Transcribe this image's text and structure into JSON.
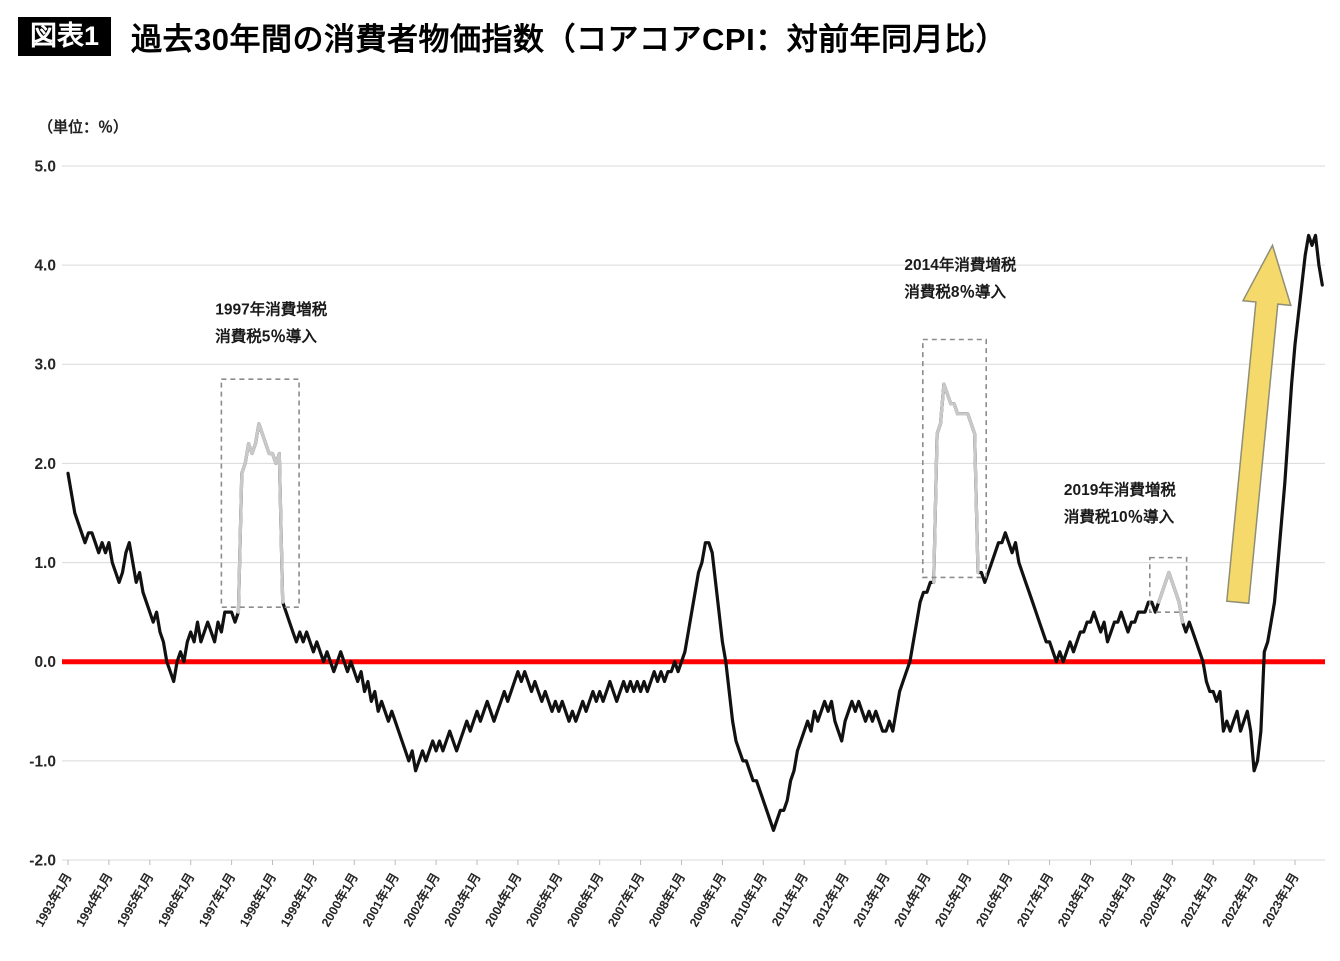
{
  "header": {
    "tag": "図表1",
    "title": "過去30年間の消費者物価指数（コアコアCPI：対前年同月比）"
  },
  "chart_data": {
    "type": "line",
    "title": "過去30年間の消費者物価指数（コアコアCPI：対前年同月比）",
    "unit_label": "（単位：％）",
    "ylim": [
      -2.0,
      5.0
    ],
    "y_ticks": [
      5.0,
      4.0,
      3.0,
      2.0,
      1.0,
      0.0,
      -1.0,
      -2.0
    ],
    "x_tick_labels": [
      "1993年1月",
      "1994年1月",
      "1995年1月",
      "1996年1月",
      "1997年1月",
      "1998年1月",
      "1999年1月",
      "2000年1月",
      "2001年1月",
      "2002年1月",
      "2003年1月",
      "2004年1月",
      "2005年1月",
      "2006年1月",
      "2007年1月",
      "2008年1月",
      "2009年1月",
      "2010年1月",
      "2011年1月",
      "2012年1月",
      "2013年1月",
      "2014年1月",
      "2015年1月",
      "2016年1月",
      "2017年1月",
      "2018年1月",
      "2019年1月",
      "2020年1月",
      "2021年1月",
      "2022年1月",
      "2023年1月"
    ],
    "start_year": 1993,
    "grid": true,
    "legend": "none",
    "line_color": "#111111",
    "highlight_color": "#c9c9c9",
    "zero_line_color": "#ff0000",
    "series": [
      {
        "name": "コアコアCPI 対前年同月比(%)",
        "values_by_year": [
          [
            1.9,
            1.7,
            1.5,
            1.4,
            1.3,
            1.2,
            1.3,
            1.3,
            1.2,
            1.1,
            1.2,
            1.1
          ],
          [
            1.2,
            1.0,
            0.9,
            0.8,
            0.9,
            1.1,
            1.2,
            1.0,
            0.8,
            0.9,
            0.7,
            0.6
          ],
          [
            0.5,
            0.4,
            0.5,
            0.3,
            0.2,
            0.0,
            -0.1,
            -0.2,
            0.0,
            0.1,
            0.0,
            0.2
          ],
          [
            0.3,
            0.2,
            0.4,
            0.2,
            0.3,
            0.4,
            0.3,
            0.2,
            0.4,
            0.3,
            0.5,
            0.5
          ],
          [
            0.5,
            0.4,
            0.5,
            1.9,
            2.0,
            2.2,
            2.1,
            2.2,
            2.4,
            2.3,
            2.2,
            2.1
          ],
          [
            2.1,
            2.0,
            2.1,
            0.6,
            0.5,
            0.4,
            0.3,
            0.2,
            0.3,
            0.2,
            0.3,
            0.2
          ],
          [
            0.1,
            0.2,
            0.1,
            0.0,
            0.1,
            0.0,
            -0.1,
            0.0,
            0.1,
            0.0,
            -0.1,
            0.0
          ],
          [
            -0.1,
            -0.2,
            -0.1,
            -0.3,
            -0.2,
            -0.4,
            -0.3,
            -0.5,
            -0.4,
            -0.5,
            -0.6,
            -0.5
          ],
          [
            -0.6,
            -0.7,
            -0.8,
            -0.9,
            -1.0,
            -0.9,
            -1.1,
            -1.0,
            -0.9,
            -1.0,
            -0.9,
            -0.8
          ],
          [
            -0.9,
            -0.8,
            -0.9,
            -0.8,
            -0.7,
            -0.8,
            -0.9,
            -0.8,
            -0.7,
            -0.6,
            -0.7,
            -0.6
          ],
          [
            -0.5,
            -0.6,
            -0.5,
            -0.4,
            -0.5,
            -0.6,
            -0.5,
            -0.4,
            -0.3,
            -0.4,
            -0.3,
            -0.2
          ],
          [
            -0.1,
            -0.2,
            -0.1,
            -0.2,
            -0.3,
            -0.2,
            -0.3,
            -0.4,
            -0.3,
            -0.4,
            -0.5,
            -0.4
          ],
          [
            -0.5,
            -0.4,
            -0.5,
            -0.6,
            -0.5,
            -0.6,
            -0.5,
            -0.4,
            -0.5,
            -0.4,
            -0.3,
            -0.4
          ],
          [
            -0.3,
            -0.4,
            -0.3,
            -0.2,
            -0.3,
            -0.4,
            -0.3,
            -0.2,
            -0.3,
            -0.2,
            -0.3,
            -0.2
          ],
          [
            -0.3,
            -0.2,
            -0.3,
            -0.2,
            -0.1,
            -0.2,
            -0.1,
            -0.2,
            -0.1,
            -0.1,
            0.0,
            -0.1
          ],
          [
            0.0,
            0.1,
            0.3,
            0.5,
            0.7,
            0.9,
            1.0,
            1.2,
            1.2,
            1.1,
            0.8,
            0.5
          ],
          [
            0.2,
            0.0,
            -0.3,
            -0.6,
            -0.8,
            -0.9,
            -1.0,
            -1.0,
            -1.1,
            -1.2,
            -1.2,
            -1.3
          ],
          [
            -1.4,
            -1.5,
            -1.6,
            -1.7,
            -1.6,
            -1.5,
            -1.5,
            -1.4,
            -1.2,
            -1.1,
            -0.9,
            -0.8
          ],
          [
            -0.7,
            -0.6,
            -0.7,
            -0.5,
            -0.6,
            -0.5,
            -0.4,
            -0.5,
            -0.4,
            -0.6,
            -0.7,
            -0.8
          ],
          [
            -0.6,
            -0.5,
            -0.4,
            -0.5,
            -0.4,
            -0.5,
            -0.6,
            -0.5,
            -0.6,
            -0.5,
            -0.6,
            -0.7
          ],
          [
            -0.7,
            -0.6,
            -0.7,
            -0.5,
            -0.3,
            -0.2,
            -0.1,
            0.0,
            0.2,
            0.4,
            0.6,
            0.7
          ],
          [
            0.7,
            0.8,
            0.8,
            2.3,
            2.4,
            2.8,
            2.7,
            2.6,
            2.6,
            2.5,
            2.5,
            2.5
          ],
          [
            2.5,
            2.4,
            2.3,
            0.9,
            0.9,
            0.8,
            0.9,
            1.0,
            1.1,
            1.2,
            1.2,
            1.3
          ],
          [
            1.2,
            1.1,
            1.2,
            1.0,
            0.9,
            0.8,
            0.7,
            0.6,
            0.5,
            0.4,
            0.3,
            0.2
          ],
          [
            0.2,
            0.1,
            0.0,
            0.1,
            0.0,
            0.1,
            0.2,
            0.1,
            0.2,
            0.3,
            0.3,
            0.4
          ],
          [
            0.4,
            0.5,
            0.4,
            0.3,
            0.4,
            0.2,
            0.3,
            0.4,
            0.4,
            0.5,
            0.4,
            0.3
          ],
          [
            0.4,
            0.4,
            0.5,
            0.5,
            0.5,
            0.6,
            0.6,
            0.5,
            0.6,
            0.7,
            0.8,
            0.9
          ],
          [
            0.8,
            0.7,
            0.6,
            0.4,
            0.3,
            0.4,
            0.3,
            0.2,
            0.1,
            0.0,
            -0.2,
            -0.3
          ],
          [
            -0.3,
            -0.4,
            -0.3,
            -0.7,
            -0.6,
            -0.7,
            -0.6,
            -0.5,
            -0.7,
            -0.6,
            -0.5,
            -0.7
          ],
          [
            -1.1,
            -1.0,
            -0.7,
            0.1,
            0.2,
            0.4,
            0.6,
            1.0,
            1.4,
            1.8,
            2.3,
            2.8
          ],
          [
            3.2,
            3.5,
            3.8,
            4.1,
            4.3,
            4.2,
            4.3,
            4.0,
            3.8
          ]
        ]
      }
    ],
    "tax_highlights": [
      {
        "start": "1997-04",
        "end": "1998-03",
        "label_lines": [
          "1997年消費増税",
          "消費税5％導入"
        ],
        "label_anchor": {
          "year": 1996.6,
          "value": 3.5
        },
        "box": {
          "x0": 1996.75,
          "x1": 1998.65,
          "y0": 0.55,
          "y1": 2.85
        }
      },
      {
        "start": "2014-04",
        "end": "2015-03",
        "label_lines": [
          "2014年消費増税",
          "消費税8％導入"
        ],
        "label_anchor": {
          "year": 2013.45,
          "value": 3.95
        },
        "box": {
          "x0": 2013.9,
          "x1": 2015.45,
          "y0": 0.85,
          "y1": 3.25
        }
      },
      {
        "start": "2019-10",
        "end": "2020-03",
        "label_lines": [
          "2019年消費増税",
          "消費税10％導入"
        ],
        "label_anchor": {
          "year": 2017.35,
          "value": 1.68
        },
        "box": {
          "x0": 2019.45,
          "x1": 2020.35,
          "y0": 0.5,
          "y1": 1.05
        }
      }
    ],
    "arrow": {
      "from": {
        "year": 2021.6,
        "value": 0.6
      },
      "to": {
        "year": 2022.45,
        "value": 4.2
      },
      "fill": "#f6d96b",
      "stroke": "#8f8f76"
    }
  }
}
